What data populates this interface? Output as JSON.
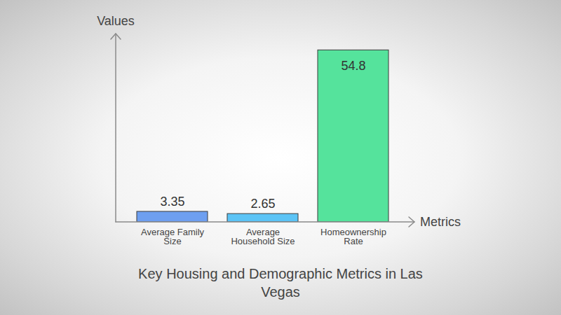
{
  "chart_data": {
    "type": "bar",
    "title": "Key Housing and Demographic Metrics in Las Vegas",
    "x_label": "Metrics",
    "y_label": "Values",
    "categories": [
      "Average Family Size",
      "Average Household Size",
      "Homeownership Rate"
    ],
    "values": [
      3.35,
      2.65,
      54.8
    ],
    "colors": [
      "#6e9ff0",
      "#5cc4f6",
      "#55e39c"
    ],
    "ylim": [
      0,
      60
    ],
    "data_labels": true,
    "tick_labels": "x",
    "grid": false
  }
}
